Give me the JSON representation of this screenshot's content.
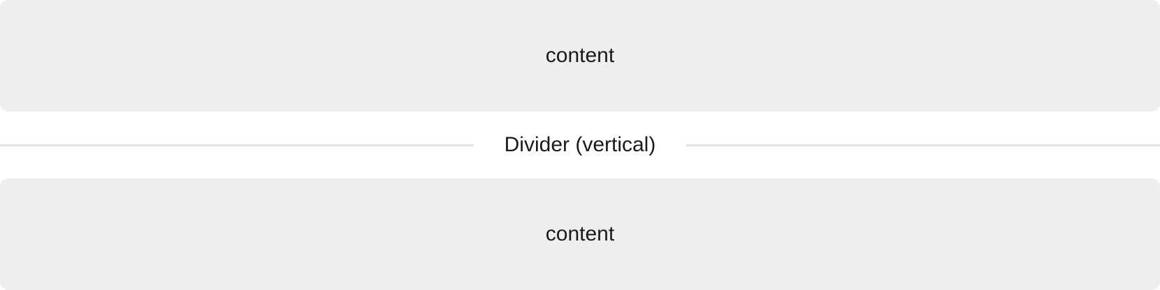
{
  "panels": {
    "top": {
      "label": "content"
    },
    "bottom": {
      "label": "content"
    }
  },
  "divider": {
    "label": "Divider (vertical)"
  },
  "colors": {
    "panel_background": "#eeeeee",
    "divider_line": "#e3e3e3",
    "text": "#1a1a1a",
    "page_background": "#ffffff"
  }
}
